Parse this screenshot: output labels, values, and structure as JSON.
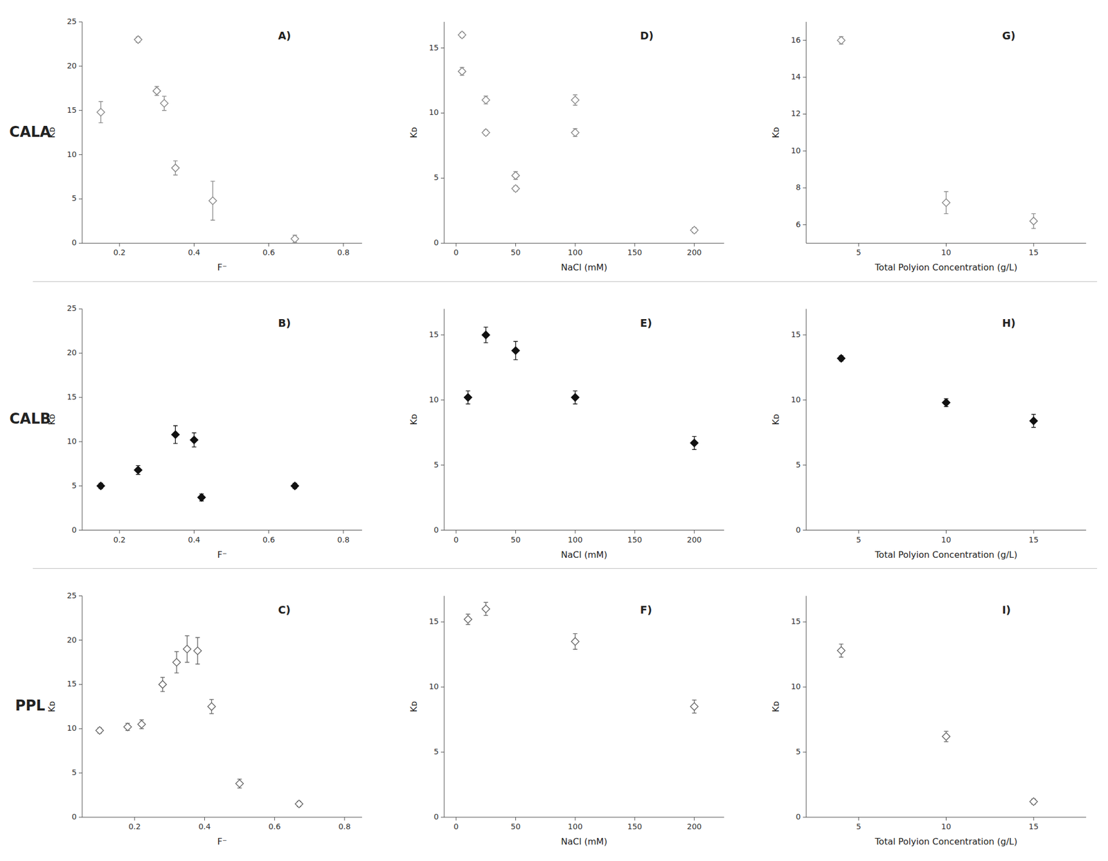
{
  "chart_data": [
    {
      "type": "scatter",
      "title": "A)",
      "annotations": [
        "CALA"
      ],
      "xlabel": "F⁻",
      "ylabel": "Kᴅ",
      "xlim": [
        0.1,
        0.85
      ],
      "ylim": [
        0,
        25
      ],
      "xticks": [
        0.2,
        0.4,
        0.6,
        0.8
      ],
      "yticks": [
        0,
        5,
        10,
        15,
        20,
        25
      ],
      "grid": false,
      "marker": "open_diamond",
      "color": "#888888",
      "x": [
        0.15,
        0.25,
        0.3,
        0.32,
        0.35,
        0.45,
        0.67
      ],
      "values": [
        14.8,
        23.0,
        17.2,
        15.8,
        8.5,
        4.8,
        0.5
      ],
      "yerr": [
        1.2,
        0.3,
        0.5,
        0.8,
        0.8,
        2.2,
        0.4
      ]
    },
    {
      "type": "scatter",
      "title": "D)",
      "xlabel": "NaCl (mM)",
      "ylabel": "Kᴅ",
      "xlim": [
        -10,
        225
      ],
      "ylim": [
        0,
        17
      ],
      "xticks": [
        0,
        50,
        100,
        150,
        200
      ],
      "yticks": [
        0,
        5,
        10,
        15
      ],
      "grid": false,
      "marker": "open_diamond",
      "color": "#888888",
      "x": [
        5,
        5,
        25,
        25,
        50,
        50,
        100,
        100,
        200
      ],
      "values": [
        16.0,
        13.2,
        11.0,
        8.5,
        5.2,
        4.2,
        11.0,
        8.5,
        1.0
      ],
      "yerr": [
        0.2,
        0.3,
        0.3,
        0.2,
        0.3,
        0.2,
        0.4,
        0.3,
        0.2
      ]
    },
    {
      "type": "scatter",
      "title": "G)",
      "xlabel": "Total Polyion Concentration (g/L)",
      "ylabel": "Kᴅ",
      "xlim": [
        2,
        18
      ],
      "ylim": [
        5,
        17
      ],
      "xticks": [
        5,
        10,
        15
      ],
      "yticks": [
        6,
        8,
        10,
        12,
        14,
        16
      ],
      "grid": false,
      "marker": "open_diamond",
      "color": "#888888",
      "x": [
        4,
        10,
        15
      ],
      "values": [
        16.0,
        7.2,
        6.2
      ],
      "yerr": [
        0.2,
        0.6,
        0.4
      ]
    },
    {
      "type": "scatter",
      "title": "B)",
      "annotations": [
        "CALB"
      ],
      "xlabel": "F⁻",
      "ylabel": "Kᴅ",
      "xlim": [
        0.1,
        0.85
      ],
      "ylim": [
        0,
        25
      ],
      "xticks": [
        0.2,
        0.4,
        0.6,
        0.8
      ],
      "yticks": [
        0,
        5,
        10,
        15,
        20,
        25
      ],
      "grid": false,
      "marker": "filled_diamond",
      "color": "#111111",
      "x": [
        0.15,
        0.25,
        0.35,
        0.4,
        0.42,
        0.67
      ],
      "values": [
        5.0,
        6.8,
        10.8,
        10.2,
        3.7,
        5.0
      ],
      "yerr": [
        0.3,
        0.5,
        1.0,
        0.8,
        0.4,
        0.3
      ]
    },
    {
      "type": "scatter",
      "title": "E)",
      "xlabel": "NaCl (mM)",
      "ylabel": "Kᴅ",
      "xlim": [
        -10,
        225
      ],
      "ylim": [
        0,
        17
      ],
      "xticks": [
        0,
        50,
        100,
        150,
        200
      ],
      "yticks": [
        0,
        5,
        10,
        15
      ],
      "grid": false,
      "marker": "filled_diamond",
      "color": "#111111",
      "x": [
        10,
        25,
        50,
        100,
        200
      ],
      "values": [
        10.2,
        15.0,
        13.8,
        10.2,
        6.7
      ],
      "yerr": [
        0.5,
        0.6,
        0.7,
        0.5,
        0.5
      ]
    },
    {
      "type": "scatter",
      "title": "H)",
      "xlabel": "Total Polyion Concentration (g/L)",
      "ylabel": "Kᴅ",
      "xlim": [
        2,
        18
      ],
      "ylim": [
        0,
        17
      ],
      "xticks": [
        5,
        10,
        15
      ],
      "yticks": [
        0,
        5,
        10,
        15
      ],
      "grid": false,
      "marker": "filled_diamond",
      "color": "#111111",
      "x": [
        4,
        10,
        15
      ],
      "values": [
        13.2,
        9.8,
        8.4
      ],
      "yerr": [
        0.2,
        0.3,
        0.5
      ]
    },
    {
      "type": "scatter",
      "title": "C)",
      "annotations": [
        "PPL"
      ],
      "xlabel": "F⁻",
      "ylabel": "Kᴅ",
      "xlim": [
        0.05,
        0.85
      ],
      "ylim": [
        0,
        25
      ],
      "xticks": [
        0.2,
        0.4,
        0.6,
        0.8
      ],
      "yticks": [
        0,
        5,
        10,
        15,
        20,
        25
      ],
      "grid": false,
      "marker": "open_diamond",
      "color": "#666666",
      "x": [
        0.1,
        0.18,
        0.22,
        0.28,
        0.32,
        0.35,
        0.38,
        0.42,
        0.5,
        0.67
      ],
      "values": [
        9.8,
        10.2,
        10.5,
        15.0,
        17.5,
        19.0,
        18.8,
        12.5,
        3.8,
        1.5
      ],
      "yerr": [
        0.3,
        0.4,
        0.5,
        0.8,
        1.2,
        1.5,
        1.5,
        0.8,
        0.5,
        0.3
      ]
    },
    {
      "type": "scatter",
      "title": "F)",
      "xlabel": "NaCl (mM)",
      "ylabel": "Kᴅ",
      "xlim": [
        -10,
        225
      ],
      "ylim": [
        0,
        17
      ],
      "xticks": [
        0,
        50,
        100,
        150,
        200
      ],
      "yticks": [
        0,
        5,
        10,
        15
      ],
      "grid": false,
      "marker": "open_diamond",
      "color": "#666666",
      "x": [
        10,
        25,
        100,
        200
      ],
      "values": [
        15.2,
        16.0,
        13.5,
        8.5
      ],
      "yerr": [
        0.4,
        0.5,
        0.6,
        0.5
      ]
    },
    {
      "type": "scatter",
      "title": "I)",
      "xlabel": "Total Polyion Concentration (g/L)",
      "ylabel": "Kᴅ",
      "xlim": [
        2,
        18
      ],
      "ylim": [
        0,
        17
      ],
      "xticks": [
        5,
        10,
        15
      ],
      "yticks": [
        0,
        5,
        10,
        15
      ],
      "grid": false,
      "marker": "open_diamond",
      "color": "#666666",
      "x": [
        4,
        10,
        15
      ],
      "values": [
        12.8,
        6.2,
        1.2
      ],
      "yerr": [
        0.5,
        0.4,
        0.2
      ]
    }
  ]
}
